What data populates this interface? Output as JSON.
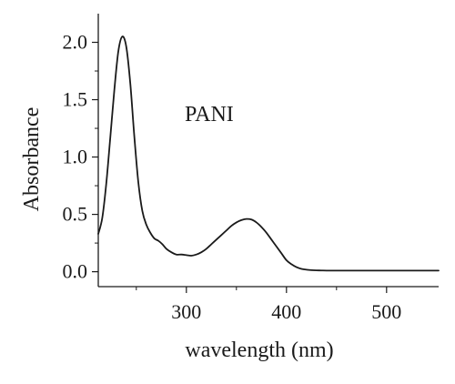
{
  "chart_data": {
    "type": "line",
    "title": "",
    "xlabel": "wavelength (nm)",
    "ylabel": "Absorbance",
    "annotations": [
      {
        "text": "PANI"
      }
    ],
    "xlim": [
      212,
      552
    ],
    "ylim": [
      -0.13,
      2.25
    ],
    "xticks": [
      {
        "value": 300,
        "label": "300"
      },
      {
        "value": 400,
        "label": "400"
      },
      {
        "value": 500,
        "label": "500"
      }
    ],
    "yticks": [
      {
        "value": 0.0,
        "label": "0.0"
      },
      {
        "value": 0.5,
        "label": "0.5"
      },
      {
        "value": 1.0,
        "label": "1.0"
      },
      {
        "value": 1.5,
        "label": "1.5"
      },
      {
        "value": 2.0,
        "label": "2.0"
      }
    ],
    "grid": false,
    "legend": "none",
    "series": [
      {
        "color": "#1a1a1a",
        "x": [
          212,
          216,
          220,
          224,
          228,
          232,
          236,
          240,
          244,
          248,
          252,
          256,
          260,
          264,
          268,
          272,
          276,
          280,
          285,
          290,
          295,
          300,
          305,
          310,
          315,
          320,
          325,
          330,
          335,
          340,
          345,
          350,
          355,
          360,
          365,
          370,
          375,
          380,
          385,
          390,
          395,
          400,
          405,
          410,
          415,
          420,
          425,
          430,
          435,
          440,
          450,
          460,
          480,
          500,
          525,
          552
        ],
        "y": [
          0.33,
          0.47,
          0.77,
          1.17,
          1.58,
          1.92,
          2.05,
          1.96,
          1.64,
          1.18,
          0.78,
          0.53,
          0.41,
          0.34,
          0.29,
          0.27,
          0.24,
          0.2,
          0.17,
          0.15,
          0.15,
          0.145,
          0.14,
          0.15,
          0.17,
          0.2,
          0.24,
          0.28,
          0.32,
          0.36,
          0.4,
          0.43,
          0.45,
          0.46,
          0.455,
          0.43,
          0.39,
          0.34,
          0.28,
          0.22,
          0.16,
          0.1,
          0.065,
          0.04,
          0.025,
          0.018,
          0.014,
          0.012,
          0.011,
          0.01,
          0.01,
          0.01,
          0.01,
          0.01,
          0.01,
          0.01
        ]
      }
    ]
  }
}
